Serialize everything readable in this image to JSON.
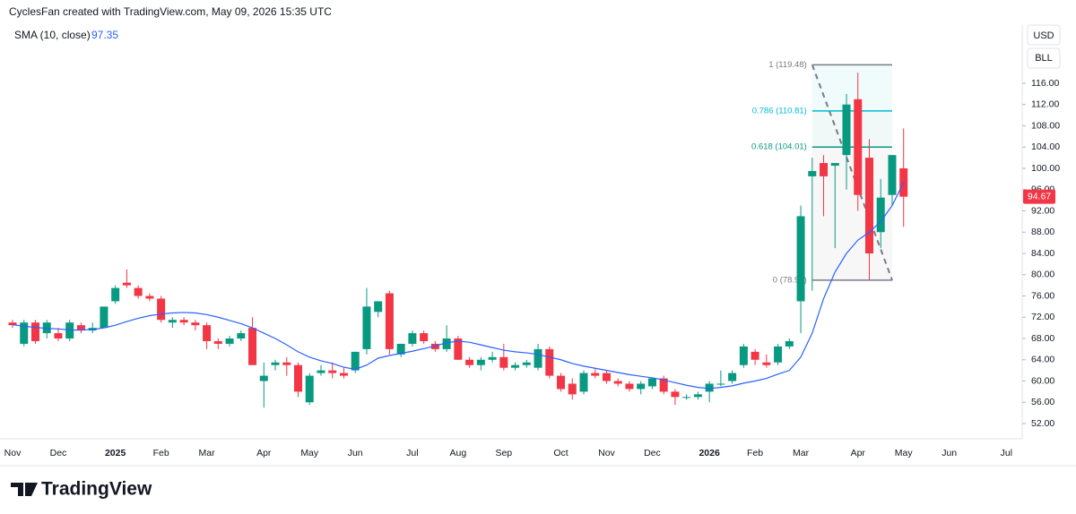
{
  "header": {
    "attribution": "CyclesFan created with TradingView.com, May 09, 2026 15:35 UTC"
  },
  "buttons": [
    "USD",
    "BLL"
  ],
  "footer": {
    "logo": "TradingView"
  },
  "chart_data": {
    "type": "candlestick",
    "categories": [
      "Nov",
      null,
      null,
      null,
      "Dec",
      null,
      null,
      null,
      null,
      "2025",
      null,
      null,
      null,
      "Feb",
      null,
      null,
      null,
      "Mar",
      null,
      null,
      null,
      null,
      "Apr",
      null,
      null,
      null,
      "May",
      null,
      null,
      null,
      "Jun",
      null,
      null,
      null,
      null,
      "Jul",
      null,
      null,
      null,
      "Aug",
      null,
      null,
      null,
      "Sep",
      null,
      null,
      null,
      null,
      "Oct",
      null,
      null,
      null,
      "Nov",
      null,
      null,
      null,
      "Dec",
      null,
      null,
      null,
      null,
      "2026",
      null,
      null,
      null,
      "Feb",
      null,
      null,
      null,
      "Mar",
      null,
      null,
      null,
      null,
      "Apr",
      null,
      null,
      null,
      "May",
      null,
      null,
      null,
      "Jun",
      null,
      null,
      null,
      null,
      "Jul"
    ],
    "open": [
      71,
      67,
      71,
      69,
      69,
      68,
      70.5,
      69.5,
      70,
      75,
      78.5,
      77.5,
      76,
      75.5,
      71,
      71.5,
      71,
      70.5,
      67.5,
      67,
      68,
      70,
      60,
      63,
      63.5,
      63,
      56,
      61.5,
      62,
      61.5,
      62,
      66,
      73,
      76.5,
      65,
      67,
      69,
      67,
      66,
      68,
      64,
      63,
      64,
      64.5,
      62.5,
      63,
      62.5,
      66,
      61,
      59.5,
      58,
      61.5,
      61.5,
      60,
      59.5,
      58.5,
      59,
      60.5,
      58,
      57,
      57,
      58,
      59.5,
      60,
      63,
      65.5,
      63.5,
      63.5,
      66.5,
      75,
      98.5,
      101,
      100.5,
      102.5,
      113,
      102,
      88,
      95,
      100,
      null,
      null,
      null,
      null,
      null,
      null,
      null,
      null,
      null
    ],
    "high": [
      71.5,
      71.5,
      71.5,
      71.5,
      70,
      71.5,
      71,
      71,
      74,
      78,
      81,
      78,
      76.5,
      76,
      72,
      72,
      71.5,
      71,
      68,
      68.5,
      69.5,
      72,
      63.5,
      64,
      64.5,
      63.5,
      61.5,
      63,
      63.5,
      62.5,
      65.5,
      77.5,
      75,
      77,
      67,
      69.5,
      69.5,
      67.5,
      70.5,
      68.5,
      64.5,
      64.5,
      65.5,
      67,
      63.5,
      64,
      67,
      66.5,
      61.5,
      60.5,
      62,
      62.5,
      62,
      60.5,
      60,
      60,
      60.5,
      61,
      58.5,
      57.5,
      58,
      60,
      62,
      62,
      67,
      66,
      65,
      67,
      68,
      93,
      102,
      102.5,
      101,
      114,
      118,
      105.5,
      98,
      102.5,
      107.5,
      null,
      null,
      null,
      null,
      null,
      null,
      null,
      null,
      null
    ],
    "low": [
      70,
      66.5,
      67,
      68,
      67.5,
      67.5,
      69,
      69,
      70,
      74.5,
      77.5,
      75.5,
      75,
      71,
      70,
      70.5,
      69.5,
      66,
      66,
      66.5,
      67.5,
      63,
      55,
      62,
      61,
      57,
      55.5,
      61,
      60.5,
      60.5,
      61.5,
      65,
      72,
      65,
      64.5,
      66.5,
      67,
      65.5,
      65.5,
      64,
      62.5,
      62,
      63.5,
      62,
      62,
      62.5,
      62,
      60.5,
      58,
      56.5,
      57.5,
      60.5,
      59.5,
      59,
      58,
      57.5,
      58.5,
      57.5,
      55.5,
      56.5,
      56.5,
      56,
      59,
      59.5,
      62.5,
      63,
      62.5,
      63,
      66,
      69,
      77,
      91,
      85,
      96,
      92,
      79,
      85,
      93,
      89,
      null,
      null,
      null,
      null,
      null,
      null,
      null,
      null,
      null
    ],
    "close": [
      70.5,
      71,
      67.5,
      71,
      68,
      71,
      69.5,
      70,
      74,
      77.5,
      78,
      76,
      75.5,
      71.5,
      71.5,
      71,
      70.5,
      67.5,
      67,
      68,
      69,
      63,
      61,
      63.5,
      63,
      58,
      61,
      62,
      61.5,
      61,
      65.5,
      74,
      75,
      66,
      67,
      69,
      67.5,
      66,
      68,
      64,
      63,
      64,
      64.5,
      62.5,
      63,
      63.5,
      66,
      61,
      58.5,
      57.5,
      61.5,
      61,
      60,
      59.5,
      58.5,
      59.5,
      60.5,
      58,
      57,
      57,
      57.5,
      59.5,
      59.5,
      61.5,
      66.5,
      64,
      63,
      66.5,
      67.5,
      91,
      99.5,
      98.5,
      101,
      112,
      95,
      84,
      94.5,
      102.5,
      94.67,
      null,
      null,
      null,
      null,
      null,
      null,
      null,
      null,
      null
    ],
    "up_color": "#089981",
    "down_color": "#f23645",
    "sma": {
      "name": "SMA (10, close)",
      "color": "#2962ff",
      "values": [
        70.6,
        70.3,
        70.1,
        69.9,
        69.8,
        69.6,
        69.6,
        69.7,
        70,
        70.5,
        71.2,
        71.8,
        72.3,
        72.6,
        72.8,
        72.9,
        72.8,
        72.5,
        72,
        71.4,
        70.8,
        70,
        69,
        68,
        66.8,
        65.5,
        64.5,
        63.8,
        63.3,
        62.6,
        62.2,
        63,
        64.3,
        64.8,
        65.2,
        65.6,
        66.1,
        66.6,
        67.2,
        67.5,
        67.3,
        66.8,
        66.3,
        65.8,
        65.5,
        65.3,
        65,
        64.5,
        64,
        63.3,
        62.8,
        62.4,
        62,
        61.6,
        61.2,
        60.9,
        60.6,
        60.2,
        59.7,
        59.2,
        58.8,
        58.6,
        58.8,
        59.1,
        59.6,
        60,
        60.5,
        61.3,
        62,
        64.5,
        69,
        75.5,
        80.5,
        84,
        86.5,
        88,
        90,
        93,
        97.35,
        null,
        null,
        null,
        null,
        null,
        null,
        null,
        null,
        null
      ]
    },
    "fibonacci": {
      "levels": [
        {
          "value": 119.48,
          "label": "1 (119.48)",
          "color": "#787b86"
        },
        {
          "value": 110.81,
          "label": "0.786 (110.81)",
          "color": "#00bcd4"
        },
        {
          "value": 104.01,
          "label": "0.618 (104.01)",
          "color": "#089981"
        },
        {
          "value": 78.98,
          "label": "0 (78.98)",
          "color": "#787b86"
        }
      ]
    },
    "ylim": [
      49.14,
      122.4
    ],
    "yticks": [
      {
        "value": 52,
        "label": "52.00"
      },
      {
        "value": 56,
        "label": "56.00"
      },
      {
        "value": 60,
        "label": "60.00"
      },
      {
        "value": 64,
        "label": "64.00"
      },
      {
        "value": 68,
        "label": "68.00"
      },
      {
        "value": 72,
        "label": "72.00"
      },
      {
        "value": 76,
        "label": "76.00"
      },
      {
        "value": 80,
        "label": "80.00"
      },
      {
        "value": 84,
        "label": "84.00"
      },
      {
        "value": 88,
        "label": "88.00"
      },
      {
        "value": 92,
        "label": "92.00"
      },
      {
        "value": 96,
        "label": "96.00"
      },
      {
        "value": 100,
        "label": "100.00"
      },
      {
        "value": 104,
        "label": "104.00"
      },
      {
        "value": 108,
        "label": "108.00"
      },
      {
        "value": 112,
        "label": "112.00"
      },
      {
        "value": 116,
        "label": "116.00"
      }
    ]
  }
}
